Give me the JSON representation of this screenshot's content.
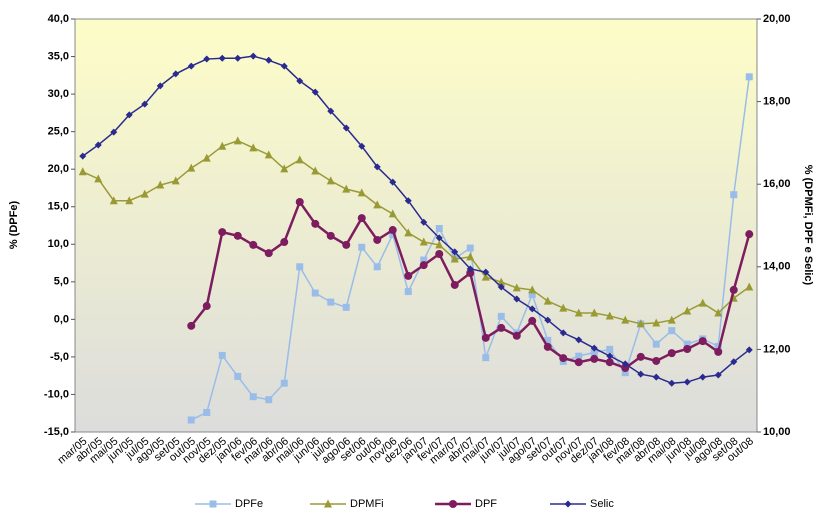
{
  "chart_data": {
    "type": "line",
    "y_label": "% (DPFe)",
    "y2_label": "% (DPMFi, DPF e Selic)",
    "categories": [
      "mar/05",
      "abr/05",
      "mai/05",
      "jun/05",
      "jul/05",
      "ago/05",
      "set/05",
      "out/05",
      "nov/05",
      "dez/05",
      "jan/06",
      "fev/06",
      "mar/06",
      "abr/06",
      "mai/06",
      "jun/06",
      "jul/06",
      "ago/06",
      "set/06",
      "out/06",
      "nov/06",
      "dez/06",
      "jan/07",
      "fev/07",
      "mar/07",
      "abr/07",
      "mai/07",
      "jun/07",
      "jul/07",
      "ago/07",
      "set/07",
      "out/07",
      "nov/07",
      "dez/07",
      "jan/08",
      "fev/08",
      "mar/08",
      "abr/08",
      "mai/08",
      "jun/08",
      "jul/08",
      "ago/08",
      "set/08",
      "out/08"
    ],
    "ylim": [
      -15,
      40
    ],
    "yticks": [
      {
        "value": -15,
        "label": "-15,0"
      },
      {
        "value": -10,
        "label": "-10,0"
      },
      {
        "value": -5,
        "label": "-5,0"
      },
      {
        "value": 0,
        "label": "0,0"
      },
      {
        "value": 5,
        "label": "5,0"
      },
      {
        "value": 10,
        "label": "10,0"
      },
      {
        "value": 15,
        "label": "15,0"
      },
      {
        "value": 20,
        "label": "20,0"
      },
      {
        "value": 25,
        "label": "25,0"
      },
      {
        "value": 30,
        "label": "30,0"
      },
      {
        "value": 35,
        "label": "35,0"
      },
      {
        "value": 40,
        "label": "40,0"
      }
    ],
    "y2lim": [
      10,
      20
    ],
    "y2ticks": [
      {
        "value": 10,
        "label": "10,00"
      },
      {
        "value": 12,
        "label": "12,00"
      },
      {
        "value": 14,
        "label": "14,00"
      },
      {
        "value": 16,
        "label": "16,00"
      },
      {
        "value": 18,
        "label": "18,00"
      },
      {
        "value": 20,
        "label": "20,00"
      }
    ],
    "series": [
      {
        "name": "DPFe",
        "color": "#99bde8",
        "marker": "square",
        "axis": "y",
        "values": [
          null,
          null,
          null,
          null,
          null,
          null,
          null,
          -13.4,
          -12.4,
          -4.8,
          -7.6,
          -10.3,
          -10.7,
          -8.5,
          7.0,
          3.5,
          2.3,
          1.6,
          9.6,
          7.0,
          11.3,
          3.7,
          7.9,
          12.1,
          8.1,
          9.5,
          -5.1,
          0.4,
          -1.8,
          3.3,
          -2.8,
          -5.6,
          -4.9,
          -4.4,
          -4.0,
          -7.1,
          -0.6,
          -3.3,
          -1.5,
          -3.3,
          -2.6,
          -3.6,
          16.6,
          32.3
        ]
      },
      {
        "name": "DPMFi",
        "color": "#9a9a35",
        "marker": "triangle",
        "axis": "y2",
        "values": [
          16.3,
          16.13,
          15.6,
          15.6,
          15.76,
          15.98,
          16.08,
          16.39,
          16.63,
          16.92,
          17.05,
          16.88,
          16.71,
          16.37,
          16.59,
          16.32,
          16.08,
          15.88,
          15.79,
          15.5,
          15.28,
          14.82,
          14.6,
          14.53,
          14.19,
          14.24,
          13.75,
          13.63,
          13.49,
          13.44,
          13.17,
          13.0,
          12.88,
          12.88,
          12.81,
          12.71,
          12.62,
          12.64,
          12.71,
          12.93,
          13.12,
          12.88,
          13.24,
          13.51
        ]
      },
      {
        "name": "DPF",
        "color": "#7d1c5e",
        "marker": "circle",
        "axis": "y2",
        "values": [
          null,
          null,
          null,
          null,
          null,
          null,
          null,
          12.57,
          13.05,
          14.84,
          14.75,
          14.53,
          14.33,
          14.6,
          15.57,
          15.04,
          14.75,
          14.53,
          15.18,
          14.65,
          14.89,
          13.78,
          14.04,
          14.31,
          13.56,
          13.85,
          12.28,
          12.52,
          12.33,
          12.69,
          12.06,
          11.79,
          11.69,
          11.77,
          11.69,
          11.55,
          11.82,
          11.72,
          11.91,
          12.01,
          12.2,
          11.94,
          13.44,
          14.79
        ]
      },
      {
        "name": "Selic",
        "color": "#2a2a90",
        "marker": "diamond",
        "axis": "y2",
        "values": [
          16.68,
          16.95,
          17.26,
          17.68,
          17.94,
          18.38,
          18.67,
          18.86,
          19.03,
          19.05,
          19.05,
          19.1,
          19.0,
          18.86,
          18.5,
          18.23,
          17.77,
          17.36,
          16.92,
          16.42,
          16.05,
          15.6,
          15.08,
          14.7,
          14.36,
          13.95,
          13.87,
          13.51,
          13.22,
          12.98,
          12.71,
          12.4,
          12.23,
          12.03,
          11.84,
          11.65,
          11.4,
          11.33,
          11.18,
          11.21,
          11.33,
          11.38,
          11.7,
          11.99
        ]
      }
    ]
  }
}
